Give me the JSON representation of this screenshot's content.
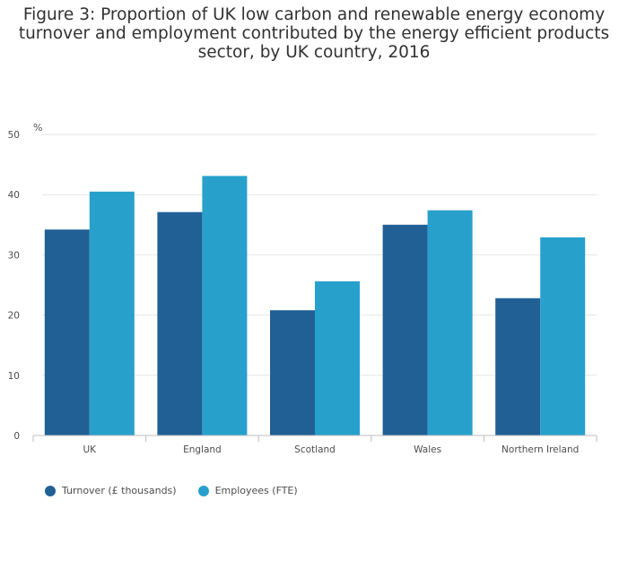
{
  "chart_data": {
    "type": "bar",
    "title": "Figure 3: Proportion of UK low carbon and renewable energy economy turnover and employment contributed by the energy efficient products sector, by UK country, 2016",
    "ylabel": "%",
    "xlabel": "",
    "ylim": [
      0,
      50
    ],
    "yticks": [
      0,
      10,
      20,
      30,
      40,
      50
    ],
    "grid": true,
    "legend_position": "bottom-left",
    "categories": [
      "UK",
      "England",
      "Scotland",
      "Wales",
      "Northern Ireland"
    ],
    "series": [
      {
        "name": "Turnover (£ thousands)",
        "color": "#206095",
        "values": [
          34.2,
          37.1,
          20.8,
          35.0,
          22.8
        ]
      },
      {
        "name": "Employees (FTE)",
        "color": "#27a0cc",
        "values": [
          40.5,
          43.1,
          25.6,
          37.4,
          32.9
        ]
      }
    ]
  }
}
